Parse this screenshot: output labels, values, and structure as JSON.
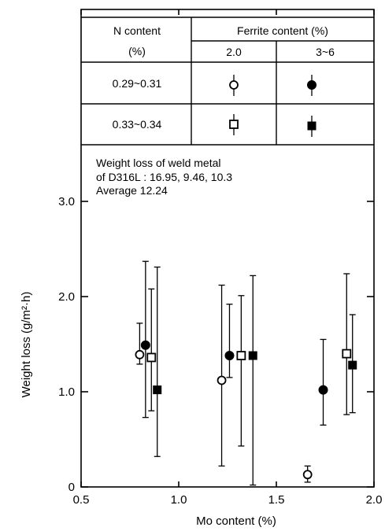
{
  "chart_data": {
    "type": "scatter",
    "xlabel": "Mo content (%)",
    "ylabel": "Weight loss (g/m²·h)",
    "xlim": [
      0.5,
      2.0
    ],
    "ylim": [
      0,
      3.3
    ],
    "x_ticks": [
      "0.5",
      "1.0",
      "1.5",
      "2.0"
    ],
    "x_tick_values": [
      0.5,
      1.0,
      1.5,
      2.0
    ],
    "y_ticks": [
      "0",
      "1.0",
      "2.0",
      "3.0"
    ],
    "y_tick_values": [
      0,
      1.0,
      2.0,
      3.0
    ],
    "grid": false,
    "legend_table": {
      "header_n": [
        "N content",
        "(%)"
      ],
      "header_ferrite": "Ferrite content (%)",
      "ferrite_levels": [
        "2.0",
        "3~6"
      ],
      "rows": [
        {
          "n_label": "0.29~0.31",
          "markers": [
            "open-circle",
            "filled-circle"
          ]
        },
        {
          "n_label": "0.33~0.34",
          "markers": [
            "open-square",
            "filled-square"
          ]
        }
      ]
    },
    "annotation": [
      "Weight loss of weld metal",
      "of D316L : 16.95, 9.46, 10.3",
      "Average 12.24"
    ],
    "series": [
      {
        "marker": "open-circle",
        "points": [
          {
            "x": 0.8,
            "y": 1.39,
            "lo": 1.29,
            "hi": 1.72
          },
          {
            "x": 1.22,
            "y": 1.12,
            "lo": 0.22,
            "hi": 2.12
          },
          {
            "x": 1.66,
            "y": 0.13,
            "lo": 0.05,
            "hi": 0.22
          }
        ]
      },
      {
        "marker": "filled-circle",
        "points": [
          {
            "x": 0.83,
            "y": 1.49,
            "lo": 0.73,
            "hi": 2.37
          },
          {
            "x": 1.26,
            "y": 1.38,
            "lo": 1.15,
            "hi": 1.92
          },
          {
            "x": 1.74,
            "y": 1.02,
            "lo": 0.65,
            "hi": 1.55
          }
        ]
      },
      {
        "marker": "open-square",
        "points": [
          {
            "x": 0.86,
            "y": 1.36,
            "lo": 0.8,
            "hi": 2.08
          },
          {
            "x": 1.32,
            "y": 1.38,
            "lo": 0.43,
            "hi": 2.01
          },
          {
            "x": 1.86,
            "y": 1.4,
            "lo": 0.76,
            "hi": 2.24
          }
        ]
      },
      {
        "marker": "filled-square",
        "points": [
          {
            "x": 0.89,
            "y": 1.02,
            "lo": 0.32,
            "hi": 2.31
          },
          {
            "x": 1.38,
            "y": 1.38,
            "lo": 0.02,
            "hi": 2.22
          },
          {
            "x": 1.89,
            "y": 1.28,
            "lo": 0.78,
            "hi": 1.81
          }
        ]
      }
    ]
  }
}
